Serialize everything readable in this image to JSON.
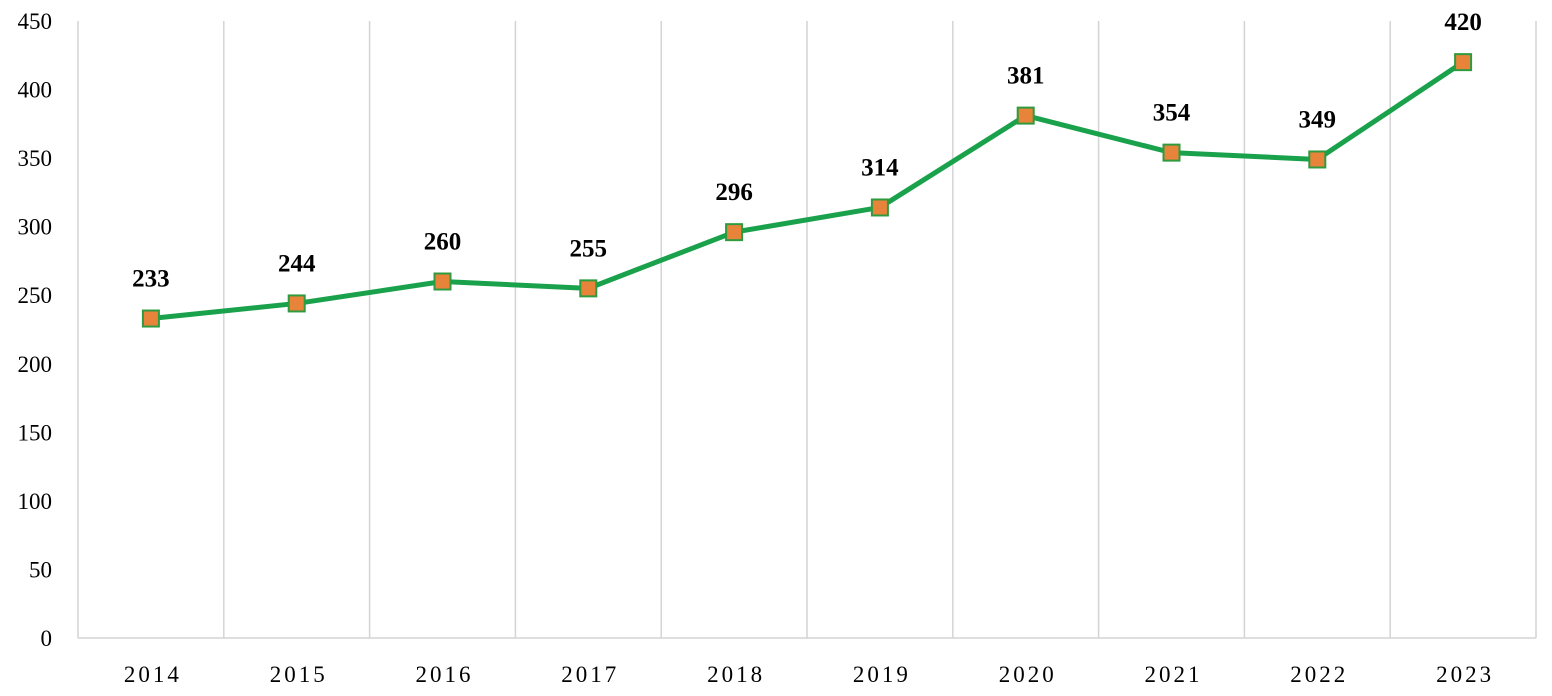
{
  "chart_data": {
    "type": "line",
    "title": "",
    "xlabel": "",
    "ylabel": "",
    "categories": [
      "2014",
      "2015",
      "2016",
      "2017",
      "2018",
      "2019",
      "2020",
      "2021",
      "2022",
      "2023"
    ],
    "series": [
      {
        "values": [
          233,
          244,
          260,
          255,
          296,
          314,
          381,
          354,
          349,
          420
        ],
        "line_color": "#1aa14b",
        "marker": "square",
        "marker_fill": "#e8843a",
        "marker_edge": "#2f9a3e"
      }
    ],
    "ylim": [
      0,
      450
    ],
    "yticks": [
      "0",
      "50",
      "100",
      "150",
      "200",
      "250",
      "300",
      "350",
      "400",
      "450"
    ],
    "grid": "vertical category separators",
    "legend": "none",
    "data_labels": true
  }
}
